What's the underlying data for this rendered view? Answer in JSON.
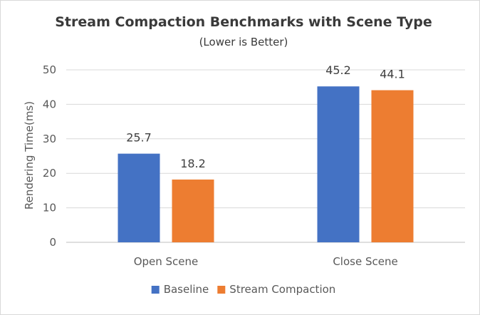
{
  "chart_data": {
    "type": "bar",
    "title": "Stream Compaction Benchmarks with Scene Type",
    "subtitle": "(Lower is Better)",
    "xlabel": "",
    "ylabel": "Rendering Time(ms)",
    "categories": [
      "Open Scene",
      "Close Scene"
    ],
    "series": [
      {
        "name": "Baseline",
        "values": [
          25.7,
          45.2
        ],
        "labels": [
          "25.7",
          "45.2"
        ],
        "color": "#4472C4"
      },
      {
        "name": "Stream Compaction",
        "values": [
          18.2,
          44.1
        ],
        "labels": [
          "18.2",
          "44.1"
        ],
        "color": "#ED7D31"
      }
    ],
    "ylim": [
      0,
      50
    ],
    "yticks": [
      0,
      10,
      20,
      30,
      40,
      50
    ],
    "ytick_labels": [
      "0",
      "10",
      "20",
      "30",
      "40",
      "50"
    ],
    "grid": true,
    "legend_position": "bottom"
  }
}
